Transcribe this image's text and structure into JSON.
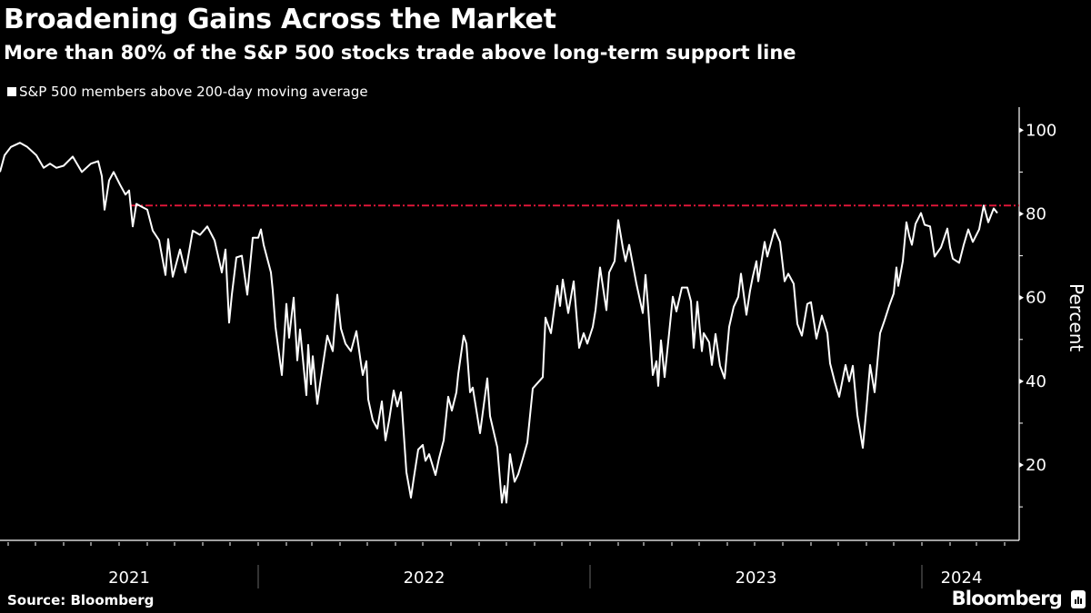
{
  "header": {
    "title": "Broadening Gains Across the Market",
    "subtitle": "More than 80% of the S&P 500 stocks trade above long-term support line"
  },
  "footer": {
    "source": "Source: Bloomberg",
    "brand": "Bloomberg"
  },
  "colors": {
    "background": "#000000",
    "series": "#ffffff",
    "reference_line": "#e8173a"
  },
  "chart_data": {
    "type": "line",
    "title": "Broadening Gains Across the Market",
    "subtitle": "More than 80% of the S&P 500 stocks trade above long-term support line",
    "ylabel": "Percent",
    "xlabel": "",
    "y_axis_position": "right",
    "ylim": [
      2,
      105.5
    ],
    "xlim": [
      "2021-03-23",
      "2024-04-17"
    ],
    "yticks": [
      20,
      40,
      60,
      80,
      100
    ],
    "xtick_labels": [
      "2021",
      "2022",
      "2023",
      "2024"
    ],
    "grid": false,
    "legend": {
      "placement": "top-left",
      "entries": [
        "S&P 500 members above 200-day moving average"
      ]
    },
    "reference_line": {
      "y": 82,
      "style": "dash-dot",
      "color": "#e8173a"
    },
    "series": [
      {
        "name": "S&P 500 members above 200-day moving average",
        "x": [
          "2021-03-23",
          "2021-03-28",
          "2021-04-04",
          "2021-04-14",
          "2021-04-22",
          "2021-05-02",
          "2021-05-10",
          "2021-05-17",
          "2021-05-24",
          "2021-06-01",
          "2021-06-11",
          "2021-06-21",
          "2021-07-01",
          "2021-07-09",
          "2021-07-13",
          "2021-07-16",
          "2021-07-21",
          "2021-07-26",
          "2021-08-02",
          "2021-08-08",
          "2021-08-12",
          "2021-08-16",
          "2021-08-20",
          "2021-08-26",
          "2021-09-01",
          "2021-09-07",
          "2021-09-14",
          "2021-09-21",
          "2021-09-24",
          "2021-09-29",
          "2021-10-07",
          "2021-10-13",
          "2021-10-21",
          "2021-10-29",
          "2021-11-06",
          "2021-11-14",
          "2021-11-22",
          "2021-11-26",
          "2021-11-30",
          "2021-12-03",
          "2021-12-08",
          "2021-12-14",
          "2021-12-20",
          "2021-12-26",
          "2022-01-01",
          "2022-01-04",
          "2022-01-07",
          "2022-01-15",
          "2022-01-17",
          "2022-01-20",
          "2022-01-27",
          "2022-02-01",
          "2022-02-04",
          "2022-02-09",
          "2022-02-13",
          "2022-02-16",
          "2022-02-23",
          "2022-02-25",
          "2022-02-28",
          "2022-03-02",
          "2022-03-07",
          "2022-03-10",
          "2022-03-18",
          "2022-03-24",
          "2022-03-29",
          "2022-04-02",
          "2022-04-07",
          "2022-04-13",
          "2022-04-19",
          "2022-04-24",
          "2022-04-26",
          "2022-04-30",
          "2022-05-02",
          "2022-05-07",
          "2022-05-12",
          "2022-05-17",
          "2022-05-21",
          "2022-05-25",
          "2022-05-30",
          "2022-06-03",
          "2022-06-07",
          "2022-06-13",
          "2022-06-18",
          "2022-06-21",
          "2022-06-26",
          "2022-07-01",
          "2022-07-04",
          "2022-07-08",
          "2022-07-15",
          "2022-07-19",
          "2022-07-24",
          "2022-07-29",
          "2022-08-02",
          "2022-08-07",
          "2022-08-09",
          "2022-08-15",
          "2022-08-18",
          "2022-08-22",
          "2022-08-25",
          "2022-09-02",
          "2022-09-10",
          "2022-09-13",
          "2022-09-21",
          "2022-09-26",
          "2022-09-29",
          "2022-10-01",
          "2022-10-05",
          "2022-10-10",
          "2022-10-14",
          "2022-10-19",
          "2022-10-24",
          "2022-10-30",
          "2022-11-10",
          "2022-11-13",
          "2022-11-19",
          "2022-11-26",
          "2022-11-29",
          "2022-12-02",
          "2022-12-08",
          "2022-12-14",
          "2022-12-20",
          "2022-12-25",
          "2022-12-29",
          "2023-01-04",
          "2023-01-07",
          "2023-01-12",
          "2023-01-19",
          "2023-01-22",
          "2023-01-28",
          "2023-02-01",
          "2023-02-06",
          "2023-02-09",
          "2023-02-13",
          "2023-02-21",
          "2023-02-28",
          "2023-03-03",
          "2023-03-06",
          "2023-03-11",
          "2023-03-15",
          "2023-03-17",
          "2023-03-20",
          "2023-03-24",
          "2023-03-30",
          "2023-04-02",
          "2023-04-06",
          "2023-04-12",
          "2023-04-18",
          "2023-04-22",
          "2023-04-25",
          "2023-04-29",
          "2023-05-04",
          "2023-05-06",
          "2023-05-12",
          "2023-05-15",
          "2023-05-19",
          "2023-05-24",
          "2023-05-29",
          "2023-06-03",
          "2023-06-08",
          "2023-06-13",
          "2023-06-16",
          "2023-06-22",
          "2023-06-26",
          "2023-06-29",
          "2023-07-03",
          "2023-07-05",
          "2023-07-12",
          "2023-07-15",
          "2023-07-23",
          "2023-07-29",
          "2023-08-03",
          "2023-08-07",
          "2023-08-13",
          "2023-08-17",
          "2023-08-22",
          "2023-08-28",
          "2023-09-01",
          "2023-09-07",
          "2023-09-13",
          "2023-09-19",
          "2023-09-22",
          "2023-09-27",
          "2023-10-02",
          "2023-10-09",
          "2023-10-13",
          "2023-10-17",
          "2023-10-22",
          "2023-10-28",
          "2023-11-01",
          "2023-11-05",
          "2023-11-10",
          "2023-11-16",
          "2023-11-21",
          "2023-11-26",
          "2023-12-01",
          "2023-12-04",
          "2023-12-06",
          "2023-12-11",
          "2023-12-15",
          "2023-12-18",
          "2023-12-21",
          "2023-12-25",
          "2023-12-31",
          "2024-01-04",
          "2024-01-10",
          "2024-01-15",
          "2024-01-22",
          "2024-01-29",
          "2024-02-01",
          "2024-02-04",
          "2024-02-11",
          "2024-02-16",
          "2024-02-21",
          "2024-02-26",
          "2024-03-04",
          "2024-03-09",
          "2024-03-14",
          "2024-03-20",
          "2024-03-24"
        ],
        "y": [
          90,
          94,
          96,
          97,
          96,
          94,
          91,
          92,
          91,
          91.5,
          93.7,
          90,
          92,
          92.6,
          89,
          81,
          88,
          90,
          87,
          84.6,
          85.6,
          77,
          82.4,
          81.7,
          81,
          76,
          73.7,
          65.4,
          74,
          65,
          71.5,
          66,
          76,
          75,
          77,
          73.7,
          66,
          71.5,
          54,
          60.7,
          69.6,
          70,
          60.7,
          74.3,
          74.3,
          76.3,
          72.6,
          66,
          61.7,
          53,
          41.5,
          58.5,
          50.4,
          60,
          45,
          52.4,
          36.7,
          48.7,
          39.3,
          46,
          34.6,
          39.3,
          50.9,
          47.2,
          60.7,
          52.6,
          49,
          47.2,
          52,
          44.3,
          41.5,
          44.8,
          35.7,
          30.7,
          28.7,
          35.2,
          25.9,
          30.7,
          37.8,
          34,
          37.4,
          18.3,
          12.2,
          16.7,
          23.7,
          24.8,
          21,
          22.6,
          17.6,
          21.7,
          25.9,
          36.3,
          33,
          37.4,
          41.7,
          50.9,
          49,
          37.4,
          38.5,
          27.6,
          40.7,
          31.7,
          24.2,
          11,
          15,
          11,
          22.6,
          16,
          17.8,
          21.5,
          25.4,
          38.3,
          41,
          55.2,
          51.5,
          62.8,
          58,
          64.3,
          56.3,
          63.9,
          48,
          51.5,
          49,
          53,
          57,
          67.2,
          57,
          66,
          68.7,
          78.5,
          72,
          68.7,
          72.6,
          63.3,
          56.3,
          65.4,
          57.4,
          41.5,
          44.8,
          38.9,
          49.8,
          41,
          53.7,
          60.2,
          56.7,
          62.4,
          62.4,
          59.1,
          48,
          59,
          47.2,
          51.5,
          49.3,
          43.9,
          51.3,
          43.7,
          40.7,
          53,
          57.8,
          60.2,
          65.7,
          55.9,
          61.7,
          65,
          68.7,
          63.9,
          73.3,
          69.8,
          76.3,
          73.3,
          63.9,
          65.7,
          63.3,
          53.7,
          50.9,
          58.5,
          58.9,
          50.2,
          55.7,
          51.5,
          44.3,
          40,
          36.3,
          43.9,
          40,
          43.7,
          32,
          24.1,
          33.5,
          43.9,
          37.4,
          51.5,
          54.6,
          58,
          61,
          67.2,
          62.8,
          68.7,
          78,
          74.8,
          72.6,
          77.6,
          80.2,
          77.4,
          77,
          69.8,
          72,
          76.5,
          72,
          69.3,
          68.3,
          72.6,
          76.3,
          73.3,
          76.3,
          82,
          78,
          81.3,
          80.2
        ]
      }
    ]
  }
}
